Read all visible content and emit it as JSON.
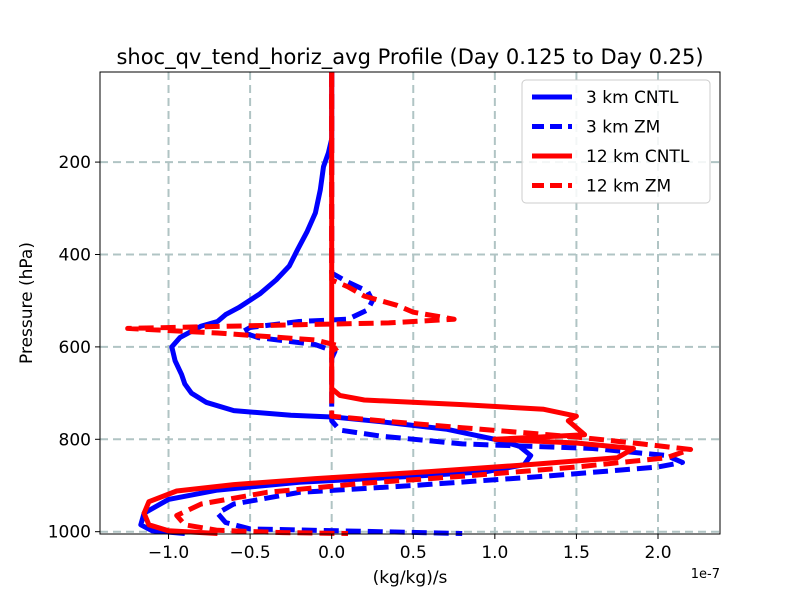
{
  "chart_data": {
    "type": "line",
    "title": "shoc_qv_tend_horiz_avg Profile (Day 0.125 to Day 0.25)",
    "xlabel": "(kg/kg)/s",
    "ylabel": "Pressure (hPa)",
    "x_offset_label": "1e-7",
    "x_scale": 1e-07,
    "xlim": [
      -1.42,
      2.38
    ],
    "ylim": [
      1005,
      5
    ],
    "y_inverted": true,
    "x_ticks": [
      -1.0,
      -0.5,
      0.0,
      0.5,
      1.0,
      1.5,
      2.0
    ],
    "x_tick_labels": [
      "−1.0",
      "−0.5",
      "0.0",
      "0.5",
      "1.0",
      "1.5",
      "2.0"
    ],
    "y_ticks": [
      200,
      400,
      600,
      800,
      1000
    ],
    "y_tick_labels": [
      "200",
      "400",
      "600",
      "800",
      "1000"
    ],
    "grid": true,
    "legend_position": "top-right",
    "series": [
      {
        "name": "3 km CNTL",
        "color": "#0000ff",
        "style": "solid",
        "points": [
          [
            0,
            5
          ],
          [
            0,
            150
          ],
          [
            -0.02,
            180
          ],
          [
            -0.05,
            210
          ],
          [
            -0.07,
            260
          ],
          [
            -0.1,
            310
          ],
          [
            -0.15,
            350
          ],
          [
            -0.21,
            390
          ],
          [
            -0.26,
            425
          ],
          [
            -0.34,
            455
          ],
          [
            -0.44,
            485
          ],
          [
            -0.57,
            515
          ],
          [
            -0.65,
            530
          ],
          [
            -0.7,
            545
          ],
          [
            -0.8,
            555
          ],
          [
            -0.93,
            580
          ],
          [
            -0.98,
            600
          ],
          [
            -0.96,
            630
          ],
          [
            -0.92,
            660
          ],
          [
            -0.9,
            680
          ],
          [
            -0.86,
            700
          ],
          [
            -0.77,
            720
          ],
          [
            -0.6,
            738
          ],
          [
            -0.25,
            748
          ],
          [
            0.02,
            752
          ],
          [
            0.3,
            762
          ],
          [
            0.7,
            778
          ],
          [
            1.0,
            800
          ],
          [
            1.15,
            815
          ],
          [
            1.22,
            835
          ],
          [
            1.18,
            855
          ],
          [
            0.95,
            870
          ],
          [
            0.5,
            880
          ],
          [
            -0.2,
            893
          ],
          [
            -0.7,
            910
          ],
          [
            -1.0,
            930
          ],
          [
            -1.15,
            960
          ],
          [
            -1.17,
            985
          ],
          [
            -1.1,
            998
          ],
          [
            -0.9,
            1004
          ]
        ]
      },
      {
        "name": "3 km ZM",
        "color": "#0000ff",
        "style": "dashed",
        "points": [
          [
            0,
            5
          ],
          [
            0,
            440
          ],
          [
            0.1,
            460
          ],
          [
            0.22,
            480
          ],
          [
            0.25,
            500
          ],
          [
            0.22,
            520
          ],
          [
            0.1,
            540
          ],
          [
            -0.2,
            545
          ],
          [
            -0.5,
            558
          ],
          [
            -0.55,
            568
          ],
          [
            -0.45,
            580
          ],
          [
            -0.1,
            595
          ],
          [
            0.02,
            610
          ],
          [
            0,
            625
          ],
          [
            0,
            760
          ],
          [
            0.05,
            780
          ],
          [
            0.3,
            793
          ],
          [
            0.8,
            810
          ],
          [
            1.6,
            820
          ],
          [
            2.05,
            835
          ],
          [
            2.15,
            850
          ],
          [
            2.0,
            860
          ],
          [
            1.3,
            880
          ],
          [
            0.5,
            900
          ],
          [
            -0.2,
            915
          ],
          [
            -0.6,
            940
          ],
          [
            -0.7,
            960
          ],
          [
            -0.65,
            980
          ],
          [
            -0.5,
            994
          ],
          [
            0.3,
            1000
          ],
          [
            0.8,
            1004
          ]
        ]
      },
      {
        "name": "12 km CNTL",
        "color": "#ff0000",
        "style": "solid",
        "points": [
          [
            0,
            5
          ],
          [
            0,
            690
          ],
          [
            0.05,
            705
          ],
          [
            0.2,
            715
          ],
          [
            0.8,
            725
          ],
          [
            1.3,
            735
          ],
          [
            1.5,
            750
          ],
          [
            1.45,
            760
          ],
          [
            1.55,
            790
          ],
          [
            1.0,
            800
          ],
          [
            1.5,
            808
          ],
          [
            1.85,
            820
          ],
          [
            1.75,
            840
          ],
          [
            1.2,
            855
          ],
          [
            0.6,
            870
          ],
          [
            -0.1,
            885
          ],
          [
            -0.6,
            898
          ],
          [
            -0.95,
            912
          ],
          [
            -1.12,
            935
          ],
          [
            -1.15,
            960
          ],
          [
            -1.12,
            985
          ],
          [
            -1.0,
            998
          ],
          [
            -0.7,
            1004
          ]
        ]
      },
      {
        "name": "12 km ZM",
        "color": "#ff0000",
        "style": "dashed",
        "points": [
          [
            0,
            5
          ],
          [
            0,
            455
          ],
          [
            0.1,
            470
          ],
          [
            0.2,
            490
          ],
          [
            0.4,
            510
          ],
          [
            0.5,
            525
          ],
          [
            0.75,
            540
          ],
          [
            0.35,
            548
          ],
          [
            -0.2,
            552
          ],
          [
            -1.25,
            560
          ],
          [
            -0.7,
            570
          ],
          [
            -0.1,
            585
          ],
          [
            0.05,
            598
          ],
          [
            0,
            610
          ],
          [
            0,
            750
          ],
          [
            0.3,
            760
          ],
          [
            0.8,
            775
          ],
          [
            1.5,
            795
          ],
          [
            1.9,
            810
          ],
          [
            2.2,
            822
          ],
          [
            2.05,
            840
          ],
          [
            1.5,
            860
          ],
          [
            0.8,
            880
          ],
          [
            0.2,
            895
          ],
          [
            -0.4,
            915
          ],
          [
            -0.8,
            940
          ],
          [
            -0.95,
            965
          ],
          [
            -0.9,
            985
          ],
          [
            -0.7,
            997
          ],
          [
            -0.3,
            1002
          ],
          [
            0.1,
            1004
          ]
        ]
      }
    ]
  }
}
